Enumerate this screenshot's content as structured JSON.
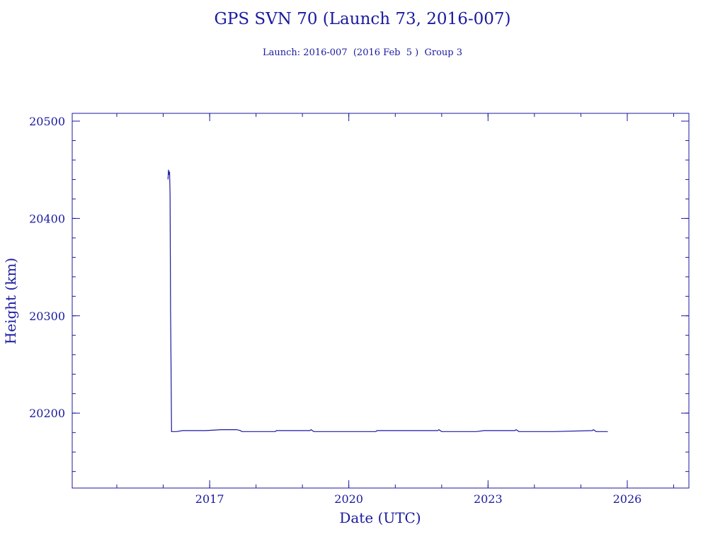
{
  "chart_data": {
    "type": "line",
    "title": "GPS SVN 70 (Launch 73, 2016-007)",
    "subtitle": "Launch: 2016-007  (2016 Feb  5 )  Group 3",
    "xlabel": "Date (UTC)",
    "ylabel": "Height (km)",
    "xlim": [
      "2014-01-15",
      "2027-05-01"
    ],
    "ylim": [
      20123,
      20508
    ],
    "x_ticks": [
      {
        "value": "2017-01-01",
        "label": "2017"
      },
      {
        "value": "2020-01-01",
        "label": "2020"
      },
      {
        "value": "2023-01-01",
        "label": "2023"
      },
      {
        "value": "2026-01-01",
        "label": "2026"
      }
    ],
    "y_ticks": [
      {
        "value": 20200,
        "label": "20200"
      },
      {
        "value": 20300,
        "label": "20300"
      },
      {
        "value": 20400,
        "label": "20400"
      },
      {
        "value": 20500,
        "label": "20500"
      }
    ],
    "color": "#1a1aa0",
    "series": [
      {
        "x": [
          "2016-02-08",
          "2016-02-12",
          "2016-02-16",
          "2016-02-20",
          "2016-02-24",
          "2016-02-28",
          "2016-03-02",
          "2016-03-07",
          "2016-03-12",
          "2016-03-16",
          "2016-03-20",
          "2016-03-24",
          "2016-03-30",
          "2016-04-15",
          "2016-06-01",
          "2016-07-15",
          "2016-08-01",
          "2016-12-01",
          "2017-04-01",
          "2017-08-01",
          "2017-09-01",
          "2017-09-10",
          "2017-10-01",
          "2018-06-01",
          "2018-06-10",
          "2019-03-01",
          "2019-03-10",
          "2019-04-01",
          "2019-12-01",
          "2020-08-01",
          "2020-08-10",
          "2020-09-01",
          "2021-06-01",
          "2021-12-01",
          "2021-12-10",
          "2022-01-01",
          "2022-10-01",
          "2022-12-01",
          "2023-08-01",
          "2023-08-10",
          "2023-09-01",
          "2024-06-01",
          "2025-04-01",
          "2025-04-10",
          "2025-05-01",
          "2025-08-01"
        ],
        "y": [
          20440,
          20450,
          20445,
          20448,
          20425,
          20305,
          20265,
          20181,
          20181,
          20181,
          20181,
          20181,
          20181,
          20181,
          20182,
          20182,
          20182,
          20182,
          20183,
          20183,
          20182,
          20181,
          20181,
          20181,
          20182,
          20182,
          20183,
          20181,
          20181,
          20181,
          20182,
          20182,
          20182,
          20182,
          20183,
          20181,
          20181,
          20182,
          20182,
          20183,
          20181,
          20181,
          20182,
          20183,
          20181,
          20181
        ]
      }
    ]
  }
}
